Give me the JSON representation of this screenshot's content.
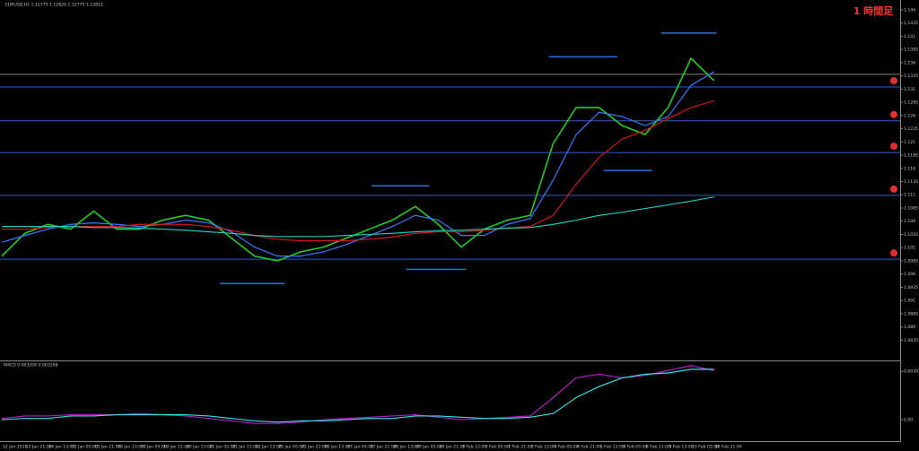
{
  "header": {
    "symbol_info": "EURUSD,H1 1.12775 1.12820 1.12775 1.12811",
    "timeframe": "1 時間足"
  },
  "chart_data": [
    {
      "type": "line",
      "x_labels": [
        "12 Jan 2016",
        "13 Jan 21:00",
        "14 Jan 13:00",
        "15 Jan 05:00",
        "15 Jan 21:00",
        "18 Jan 13:00",
        "19 Jan 05:00",
        "19 Jan 21:00",
        "20 Jan 13:00",
        "21 Jan 05:00",
        "21 Jan 21:00",
        "22 Jan 13:00",
        "25 Jan 05:00",
        "25 Jan 21:00",
        "26 Jan 13:00",
        "27 Jan 05:00",
        "27 Jan 21:00",
        "28 Jan 13:00",
        "29 Jan 05:00",
        "29 Jan 21:00",
        "1 Feb 13:00",
        "2 Feb 05:00",
        "2 Feb 21:00",
        "3 Feb 13:00",
        "4 Feb 05:00",
        "4 Feb 21:00",
        "5 Feb 13:00",
        "8 Feb 05:00",
        "8 Feb 21:00",
        "9 Feb 13:00",
        "10 Feb 05:00",
        "10 Feb 21:00"
      ],
      "series": [
        {
          "color": "#22cc22",
          "values": [
            1.0994,
            1.1037,
            1.1054,
            1.1045,
            1.1079,
            1.1045,
            1.1045,
            1.1062,
            1.1071,
            1.1062,
            1.1028,
            1.0994,
            1.0985,
            1.1002,
            1.1011,
            1.1028,
            1.1045,
            1.1062,
            1.1088,
            1.1054,
            1.1011,
            1.1045,
            1.1062,
            1.1071,
            1.1207,
            1.1275,
            1.1275,
            1.1241,
            1.1224,
            1.1275,
            1.1368,
            1.1326
          ]
        },
        {
          "color": "#3a78ff",
          "values": [
            1.102,
            1.1033,
            1.1045,
            1.1054,
            1.1057,
            1.1054,
            1.105,
            1.1054,
            1.1062,
            1.1057,
            1.104,
            1.1011,
            1.0994,
            1.0994,
            1.1002,
            1.1016,
            1.1033,
            1.105,
            1.1071,
            1.1062,
            1.1033,
            1.1033,
            1.1054,
            1.1065,
            1.1138,
            1.1224,
            1.1266,
            1.1258,
            1.1241,
            1.1258,
            1.1317,
            1.1343
          ]
        },
        {
          "color": "#d01818",
          "values": [
            1.1045,
            1.1045,
            1.1048,
            1.105,
            1.105,
            1.105,
            1.1054,
            1.1054,
            1.1054,
            1.105,
            1.1043,
            1.1033,
            1.1026,
            1.1023,
            1.1023,
            1.1023,
            1.1026,
            1.103,
            1.1037,
            1.104,
            1.104,
            1.1043,
            1.1047,
            1.105,
            1.1071,
            1.113,
            1.1181,
            1.1215,
            1.1232,
            1.1254,
            1.1275,
            1.1288
          ]
        },
        {
          "color": "#20c8b8",
          "values": [
            1.105,
            1.105,
            1.105,
            1.105,
            1.1048,
            1.1048,
            1.1047,
            1.1045,
            1.1043,
            1.104,
            1.1037,
            1.1033,
            1.1031,
            1.1031,
            1.1031,
            1.1033,
            1.1035,
            1.1037,
            1.104,
            1.1042,
            1.1043,
            1.1045,
            1.1047,
            1.1048,
            1.1054,
            1.1062,
            1.1071,
            1.1077,
            1.1084,
            1.1091,
            1.1098,
            1.1106
          ]
        }
      ],
      "hlines": [
        1.1338,
        1.1314,
        1.125,
        1.119,
        1.1109,
        1.0988
      ],
      "hline_colors": [
        "#808080",
        "#2a5ccc",
        "#2a5ccc",
        "#2a5ccc",
        "#2a5ccc",
        "#2a5ccc"
      ],
      "segments": [
        {
          "value": 1.1416,
          "x": [
            28.7,
            31.1
          ]
        },
        {
          "value": 1.1371,
          "x": [
            23.8,
            26.8
          ]
        },
        {
          "value": 1.1156,
          "x": [
            26.2,
            28.3
          ]
        },
        {
          "value": 1.1127,
          "x": [
            16.1,
            18.6
          ]
        },
        {
          "value": 1.0969,
          "x": [
            17.6,
            20.2
          ]
        },
        {
          "value": 1.0942,
          "x": [
            9.5,
            12.3
          ]
        }
      ],
      "segment_color": "#2a6ee0",
      "ylim": [
        1.08,
        1.147
      ],
      "yticks": [
        1.0835,
        1.086,
        1.0885,
        1.091,
        1.0935,
        1.096,
        1.0985,
        1.101,
        1.1035,
        1.106,
        1.1085,
        1.111,
        1.1135,
        1.116,
        1.1185,
        1.121,
        1.1235,
        1.126,
        1.1285,
        1.131,
        1.1335,
        1.136,
        1.1385,
        1.141,
        1.1435,
        1.146
      ]
    },
    {
      "type": "line",
      "title": "MACD 0.003206 0.003298",
      "series": [
        {
          "color": "#b020c0",
          "values": [
            0.0001,
            0.0003,
            0.0003,
            0.0004,
            0.0004,
            0.0004,
            0.0005,
            0.0004,
            0.0003,
            0.0001,
            -0.0001,
            -0.0003,
            -0.0003,
            -0.0002,
            0,
            0.0001,
            0.0002,
            0.0003,
            0.0004,
            0.0002,
            0,
            0.0001,
            0.0002,
            0.0003,
            0.0018,
            0.0034,
            0.0037,
            0.0034,
            0.0036,
            0.004,
            0.0044,
            0.004
          ]
        },
        {
          "color": "#30e0e8",
          "values": [
            0,
            0.0001,
            0.0001,
            0.0003,
            0.0003,
            0.0004,
            0.0004,
            0.0004,
            0.0004,
            0.0003,
            0.0001,
            -0.0001,
            -0.0002,
            -0.0001,
            -0.0001,
            0,
            0.0001,
            0.0001,
            0.0003,
            0.0003,
            0.0002,
            0.0001,
            0.0001,
            0.0002,
            0.0005,
            0.0018,
            0.0027,
            0.0034,
            0.0037,
            0.0038,
            0.0041,
            0.0041
          ]
        }
      ],
      "ylim": [
        -0.0016,
        0.0046
      ],
      "yticks": [
        {
          "value": 0,
          "label": "0.00"
        },
        0.003927
      ]
    }
  ]
}
